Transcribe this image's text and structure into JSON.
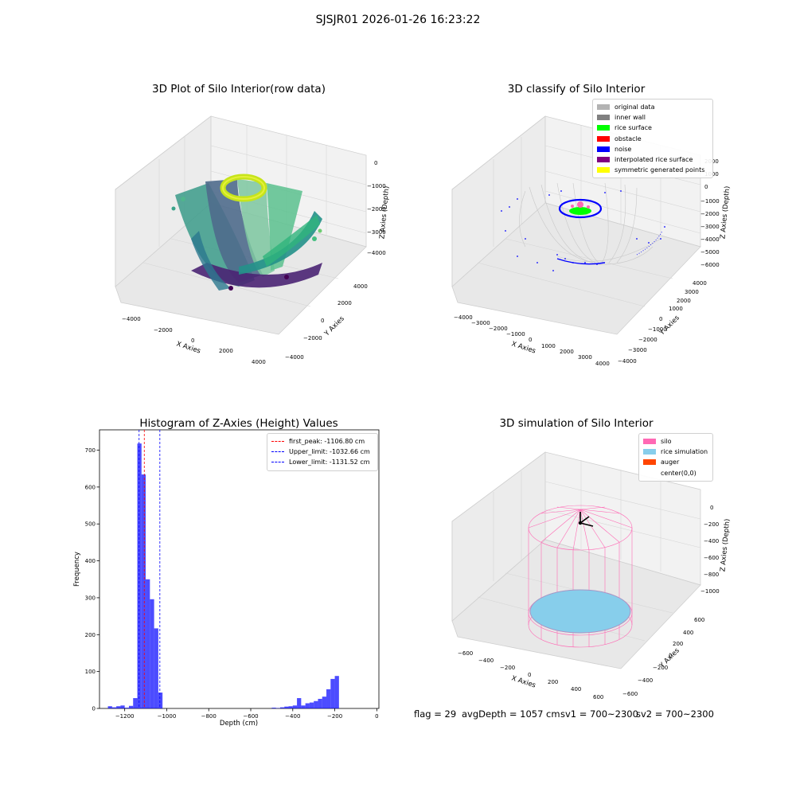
{
  "suptitle": "SJSJR01 2026-01-26 16:23:22",
  "panels": {
    "raw": {
      "title": "3D Plot of Silo Interior(row data)",
      "xlabel": "X Axies",
      "ylabel": "Y Axies",
      "zlabel": "Z Axies (Depth)",
      "xticks": [
        "−4000",
        "−2000",
        "0",
        "2000",
        "4000"
      ],
      "yticks": [
        "−4000",
        "−2000",
        "0",
        "2000",
        "4000"
      ],
      "zticks": [
        "0",
        "−1000",
        "−2000",
        "−3000",
        "−4000"
      ]
    },
    "classify": {
      "title": "3D classify of Silo Interior",
      "xlabel": "X Axies",
      "ylabel": "Y Axies",
      "zlabel": "Z Axies (Depth)",
      "xticks": [
        "−4000",
        "−3000",
        "−2000",
        "−1000",
        "0",
        "1000",
        "2000",
        "3000",
        "4000"
      ],
      "yticks": [
        "−4000",
        "−3000",
        "−2000",
        "−1000",
        "0",
        "1000",
        "2000",
        "3000",
        "4000"
      ],
      "zticks": [
        "2000",
        "1000",
        "0",
        "−1000",
        "−2000",
        "−3000",
        "−4000",
        "−5000",
        "−6000"
      ],
      "legend": [
        {
          "label": "original data",
          "color": "#b3b3b3"
        },
        {
          "label": "inner wall",
          "color": "#808080"
        },
        {
          "label": "rice surface",
          "color": "#00ff00"
        },
        {
          "label": "obstacle",
          "color": "#ff0000"
        },
        {
          "label": "noise",
          "color": "#0000ff"
        },
        {
          "label": "interpolated rice surface",
          "color": "#800080"
        },
        {
          "label": "symmetric generated points",
          "color": "#ffff00"
        }
      ]
    },
    "simulation": {
      "title": "3D simulation of Silo Interior",
      "xlabel": "X Axies",
      "ylabel": "Y Axies",
      "zlabel": "Z Axies (Depth)",
      "xticks": [
        "−600",
        "−400",
        "−200",
        "0",
        "200",
        "400",
        "600"
      ],
      "yticks": [
        "−600",
        "−400",
        "−200",
        "0",
        "200",
        "400",
        "600"
      ],
      "zticks": [
        "0",
        "−200",
        "−400",
        "−600",
        "−800",
        "−1000"
      ],
      "legend": [
        {
          "label": "silo",
          "color": "#ff69b4"
        },
        {
          "label": "rice simulation",
          "color": "#87ceeb"
        },
        {
          "label": "auger",
          "color": "#ff4500"
        },
        {
          "label": "center(0,0)",
          "color": ""
        }
      ]
    }
  },
  "footer": {
    "flag": "flag = 29",
    "avg": "avgDepth = 1057 cm",
    "sv1": "sv1 = 700~2300",
    "sv2": "sv2 = 700~2300"
  },
  "chart_data": {
    "type": "bar",
    "title": "Histogram of Z-Axies (Height) Values",
    "xlabel": "Depth (cm)",
    "ylabel": "Frequency",
    "xlim": [
      -1320,
      10
    ],
    "ylim": [
      0,
      755
    ],
    "xticks": [
      -1200,
      -1000,
      -800,
      -600,
      -400,
      -200,
      0
    ],
    "yticks": [
      0,
      100,
      200,
      300,
      400,
      500,
      600,
      700
    ],
    "bin_width": 20,
    "color": "#0000ff",
    "bins": [
      {
        "x0": -1280,
        "count": 6
      },
      {
        "x0": -1260,
        "count": 3
      },
      {
        "x0": -1240,
        "count": 6
      },
      {
        "x0": -1220,
        "count": 8
      },
      {
        "x0": -1200,
        "count": 2
      },
      {
        "x0": -1180,
        "count": 7
      },
      {
        "x0": -1160,
        "count": 28
      },
      {
        "x0": -1140,
        "count": 718
      },
      {
        "x0": -1120,
        "count": 634
      },
      {
        "x0": -1100,
        "count": 350
      },
      {
        "x0": -1080,
        "count": 296
      },
      {
        "x0": -1060,
        "count": 217
      },
      {
        "x0": -1040,
        "count": 43
      },
      {
        "x0": -500,
        "count": 2
      },
      {
        "x0": -480,
        "count": 1
      },
      {
        "x0": -460,
        "count": 3
      },
      {
        "x0": -440,
        "count": 5
      },
      {
        "x0": -420,
        "count": 6
      },
      {
        "x0": -400,
        "count": 8
      },
      {
        "x0": -380,
        "count": 28
      },
      {
        "x0": -360,
        "count": 8
      },
      {
        "x0": -340,
        "count": 14
      },
      {
        "x0": -320,
        "count": 16
      },
      {
        "x0": -300,
        "count": 20
      },
      {
        "x0": -280,
        "count": 26
      },
      {
        "x0": -260,
        "count": 32
      },
      {
        "x0": -240,
        "count": 52
      },
      {
        "x0": -220,
        "count": 80
      },
      {
        "x0": -200,
        "count": 88
      }
    ],
    "vlines": [
      {
        "label": "first_peak: -1106.80 cm",
        "x": -1106.8,
        "color": "#ff0000"
      },
      {
        "label": "Upper_limit: -1032.66 cm",
        "x": -1032.66,
        "color": "#0000ff"
      },
      {
        "label": "Lower_limit: -1131.52 cm",
        "x": -1131.52,
        "color": "#0000ff"
      }
    ]
  }
}
